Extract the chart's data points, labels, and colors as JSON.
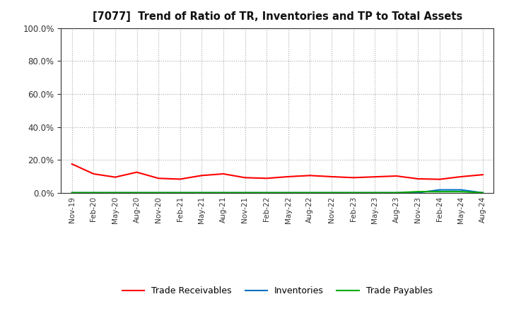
{
  "title": "[7077]  Trend of Ratio of TR, Inventories and TP to Total Assets",
  "x_labels": [
    "Nov-19",
    "Feb-20",
    "May-20",
    "Aug-20",
    "Nov-20",
    "Feb-21",
    "May-21",
    "Aug-21",
    "Nov-21",
    "Feb-22",
    "May-22",
    "Aug-22",
    "Nov-22",
    "Feb-23",
    "May-23",
    "Aug-23",
    "Nov-23",
    "Feb-24",
    "May-24",
    "Aug-24"
  ],
  "trade_receivables": [
    0.175,
    0.115,
    0.095,
    0.125,
    0.088,
    0.083,
    0.105,
    0.115,
    0.092,
    0.088,
    0.098,
    0.105,
    0.098,
    0.092,
    0.097,
    0.102,
    0.085,
    0.082,
    0.098,
    0.11
  ],
  "inventories": [
    0.0,
    0.0,
    0.0,
    0.0,
    0.0,
    0.0,
    0.0,
    0.0,
    0.0,
    0.0,
    0.0,
    0.0,
    0.0,
    0.0,
    0.0,
    0.0,
    0.001,
    0.018,
    0.018,
    0.0
  ],
  "trade_payables": [
    0.001,
    0.001,
    0.001,
    0.001,
    0.001,
    0.001,
    0.001,
    0.001,
    0.001,
    0.001,
    0.001,
    0.001,
    0.001,
    0.001,
    0.001,
    0.001,
    0.007,
    0.007,
    0.007,
    0.001
  ],
  "tr_color": "#FF0000",
  "inv_color": "#0070C0",
  "tp_color": "#00AA00",
  "ylim": [
    0.0,
    1.0
  ],
  "yticks": [
    0.0,
    0.2,
    0.4,
    0.6,
    0.8,
    1.0
  ],
  "background_color": "#FFFFFF",
  "grid_color": "#AAAAAA",
  "legend_labels": [
    "Trade Receivables",
    "Inventories",
    "Trade Payables"
  ]
}
